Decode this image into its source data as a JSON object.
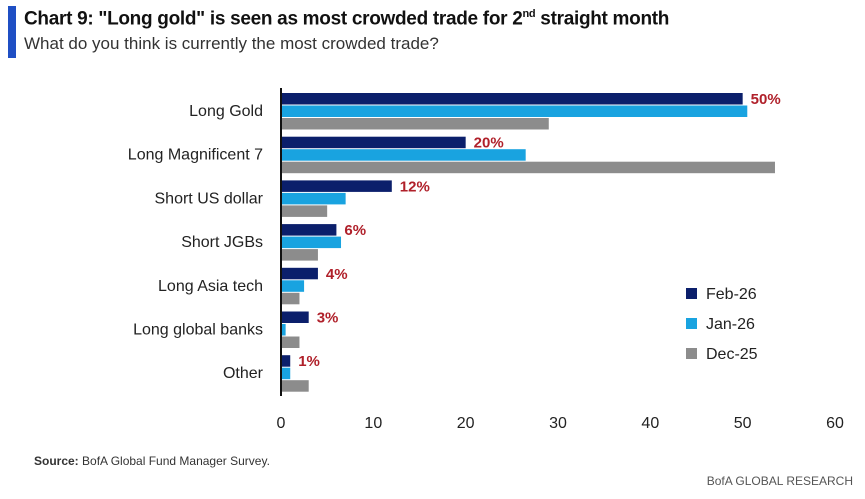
{
  "header": {
    "title_main": "Chart 9: \"Long gold\" is seen as most crowded trade for 2",
    "title_sup": "nd",
    "title_end": " straight month",
    "subtitle": "What do you think is currently the most crowded trade?"
  },
  "footer": {
    "source_label": "Source:",
    "source_text": " BofA Global Fund Manager Survey.",
    "brand": "BofA GLOBAL RESEARCH"
  },
  "chart_data": {
    "type": "bar",
    "orientation": "horizontal",
    "categories": [
      "Long Gold",
      "Long Magnificent 7",
      "Short US dollar",
      "Short JGBs",
      "Long Asia tech",
      "Long global banks",
      "Other"
    ],
    "series": [
      {
        "name": "Feb-26",
        "color": "#0b1f6b",
        "values": [
          50,
          20,
          12,
          6,
          4,
          3,
          1
        ]
      },
      {
        "name": "Jan-26",
        "color": "#19a3e0",
        "values": [
          50.5,
          26.5,
          7,
          6.5,
          2.5,
          0.5,
          1
        ]
      },
      {
        "name": "Dec-25",
        "color": "#8c8c8c",
        "values": [
          29,
          53.5,
          5,
          4,
          2,
          2,
          3
        ]
      }
    ],
    "data_labels": [
      "50%",
      "20%",
      "12%",
      "6%",
      "4%",
      "3%",
      "1%"
    ],
    "xlim": [
      0,
      60
    ],
    "xticks": [
      "0",
      "10",
      "20",
      "30",
      "40",
      "50",
      "60"
    ],
    "grid": false,
    "legend_placement": "right"
  }
}
